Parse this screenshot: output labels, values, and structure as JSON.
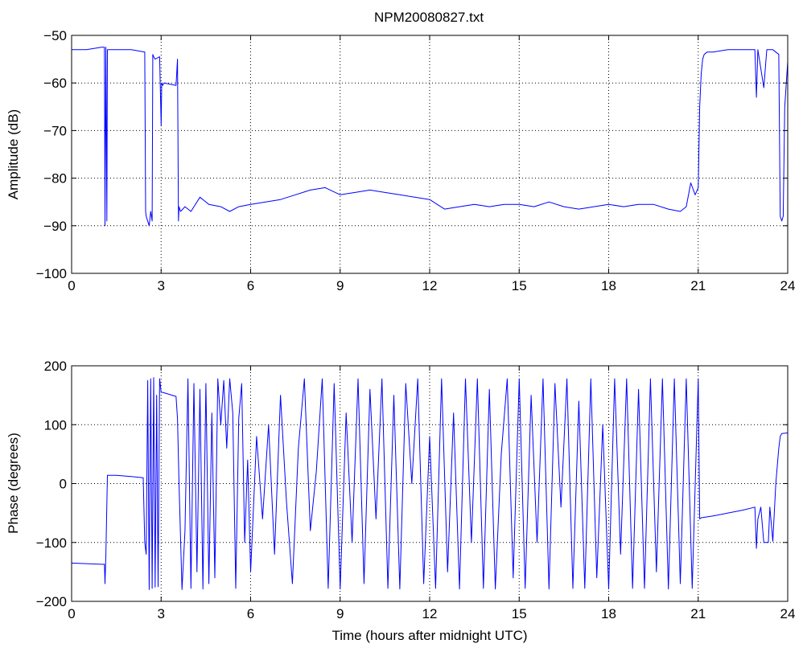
{
  "figure": {
    "title": "NPM20080827.txt"
  },
  "chart_data": [
    {
      "type": "line",
      "title": "NPM20080827.txt",
      "xlabel": "",
      "ylabel": "Amplitude (dB)",
      "xlim": [
        0,
        24
      ],
      "ylim": [
        -100,
        -50
      ],
      "xticks": [
        0,
        3,
        6,
        9,
        12,
        15,
        18,
        21,
        24
      ],
      "yticks": [
        -100,
        -90,
        -80,
        -70,
        -60,
        -50
      ],
      "grid": true,
      "color": "#0000ff",
      "series": [
        {
          "x": [
            0,
            0.5,
            1.0,
            1.05,
            1.1,
            1.12,
            1.15,
            1.18,
            1.2,
            1.3,
            2.0,
            2.45,
            2.48,
            2.5,
            2.6,
            2.65,
            2.7,
            2.72,
            2.75,
            2.8,
            2.95,
            3.0,
            3.02,
            3.05,
            3.1,
            3.5,
            3.55,
            3.58,
            3.6,
            3.65,
            3.8,
            4.0,
            4.3,
            4.6,
            5.0,
            5.3,
            5.6,
            6.0,
            6.5,
            7.0,
            7.5,
            8.0,
            8.5,
            9.0,
            9.5,
            10.0,
            10.5,
            11.0,
            11.5,
            12.0,
            12.5,
            13.0,
            13.5,
            14.0,
            14.5,
            15.0,
            15.5,
            16.0,
            16.5,
            17.0,
            17.5,
            18.0,
            18.5,
            19.0,
            19.5,
            20.0,
            20.4,
            20.6,
            20.75,
            20.9,
            21.0,
            21.05,
            21.1,
            21.15,
            21.2,
            21.3,
            21.5,
            22.0,
            22.5,
            22.9,
            22.95,
            23.0,
            23.2,
            23.3,
            23.5,
            23.7,
            23.75,
            23.8,
            23.85,
            23.9,
            24.0
          ],
          "y": [
            -53,
            -53,
            -52.5,
            -52.5,
            -52.5,
            -90,
            -52.5,
            -89,
            -53,
            -53,
            -53,
            -53.5,
            -87,
            -88,
            -90,
            -87,
            -89,
            -54,
            -54.5,
            -55,
            -54.5,
            -69,
            -60,
            -60.5,
            -60,
            -60.5,
            -55,
            -89,
            -86,
            -87,
            -86,
            -87,
            -84,
            -85.5,
            -86,
            -87,
            -86,
            -85.5,
            -85,
            -84.5,
            -83.5,
            -82.5,
            -82,
            -83.5,
            -83,
            -82.5,
            -83,
            -83.5,
            -84,
            -84.5,
            -86.5,
            -86,
            -85.5,
            -86,
            -85.5,
            -85.5,
            -86,
            -85,
            -86,
            -86.5,
            -86,
            -85.5,
            -86,
            -85.5,
            -85.5,
            -86.5,
            -87,
            -86,
            -81,
            -83.5,
            -82,
            -65,
            -58,
            -55,
            -54,
            -53.5,
            -53.5,
            -53,
            -53,
            -53,
            -63,
            -53,
            -61,
            -53,
            -53,
            -54,
            -88,
            -89,
            -88,
            -65,
            -55.5
          ]
        }
      ]
    },
    {
      "type": "line",
      "title": "",
      "xlabel": "Time (hours after midnight UTC)",
      "ylabel": "Phase (degrees)",
      "xlim": [
        0,
        24
      ],
      "ylim": [
        -200,
        200
      ],
      "xticks": [
        0,
        3,
        6,
        9,
        12,
        15,
        18,
        21,
        24
      ],
      "yticks": [
        -200,
        -100,
        0,
        100,
        200
      ],
      "grid": true,
      "color": "#0000ff",
      "series": [
        {
          "x": [
            0,
            0.5,
            1.0,
            1.1,
            1.12,
            1.15,
            1.2,
            1.5,
            2.0,
            2.4,
            2.45,
            2.5,
            2.55,
            2.6,
            2.65,
            2.7,
            2.75,
            2.8,
            2.85,
            2.9,
            2.95,
            3.0,
            3.05,
            3.5,
            3.55,
            3.6,
            3.7,
            3.8,
            3.9,
            4.0,
            4.1,
            4.2,
            4.3,
            4.4,
            4.5,
            4.6,
            4.7,
            4.8,
            4.9,
            5.0,
            5.1,
            5.2,
            5.3,
            5.4,
            5.5,
            5.6,
            5.7,
            5.8,
            5.9,
            6.0,
            6.2,
            6.4,
            6.6,
            6.8,
            7.0,
            7.2,
            7.4,
            7.6,
            7.8,
            8.0,
            8.2,
            8.4,
            8.6,
            8.8,
            9.0,
            9.2,
            9.4,
            9.6,
            9.8,
            10.0,
            10.2,
            10.4,
            10.6,
            10.8,
            11.0,
            11.2,
            11.4,
            11.6,
            11.8,
            12.0,
            12.2,
            12.4,
            12.6,
            12.8,
            13.0,
            13.2,
            13.4,
            13.6,
            13.8,
            14.0,
            14.2,
            14.4,
            14.6,
            14.8,
            15.0,
            15.2,
            15.4,
            15.6,
            15.8,
            16.0,
            16.2,
            16.4,
            16.6,
            16.8,
            17.0,
            17.2,
            17.4,
            17.6,
            17.8,
            18.0,
            18.2,
            18.4,
            18.6,
            18.8,
            19.0,
            19.2,
            19.4,
            19.6,
            19.8,
            20.0,
            20.2,
            20.4,
            20.6,
            20.8,
            21.0,
            21.05,
            21.1,
            21.5,
            22.0,
            22.5,
            22.9,
            22.95,
            23.0,
            23.1,
            23.2,
            23.3,
            23.35,
            23.4,
            23.5,
            23.6,
            23.7,
            23.75,
            23.8,
            24.0
          ],
          "y": [
            -135,
            -136,
            -137,
            -137,
            -170,
            -120,
            14,
            14,
            12,
            10,
            -100,
            -120,
            175,
            -180,
            178,
            -178,
            180,
            -176,
            150,
            -175,
            178,
            155,
            155,
            148,
            110,
            0,
            -180,
            -80,
            178,
            -178,
            170,
            -150,
            160,
            -179,
            170,
            -170,
            120,
            -160,
            178,
            100,
            175,
            60,
            178,
            120,
            -178,
            110,
            170,
            -100,
            40,
            -150,
            80,
            -60,
            100,
            -120,
            150,
            -30,
            -170,
            60,
            178,
            -80,
            20,
            178,
            -178,
            170,
            -179,
            120,
            -100,
            178,
            -170,
            160,
            -60,
            178,
            -178,
            150,
            -179,
            170,
            0,
            178,
            -170,
            80,
            -178,
            178,
            -150,
            120,
            -179,
            178,
            -100,
            178,
            -178,
            160,
            -179,
            50,
            178,
            -160,
            178,
            -178,
            150,
            -100,
            178,
            -179,
            170,
            -40,
            178,
            -178,
            140,
            -178,
            178,
            -160,
            100,
            -179,
            178,
            -120,
            178,
            -178,
            160,
            -178,
            178,
            -150,
            178,
            -179,
            178,
            -170,
            178,
            -178,
            178,
            -60,
            -58,
            -55,
            -50,
            -45,
            -40,
            -110,
            -60,
            -40,
            -100,
            -100,
            -100,
            -40,
            -98,
            0,
            60,
            80,
            85,
            86
          ]
        }
      ]
    }
  ]
}
